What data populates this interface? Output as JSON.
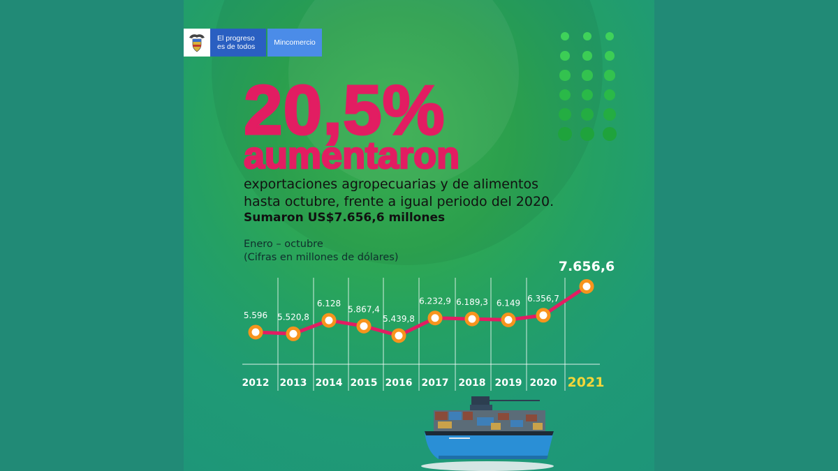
{
  "logo": {
    "progreso_line1": "El progreso",
    "progreso_line2": "es de todos",
    "ministry": "Mincomercio"
  },
  "headline": {
    "percent": "20,5%",
    "verb": "aumentaron",
    "line1": "exportaciones agropecuarias y de alimentos",
    "line2": "hasta octubre, frente a igual periodo del 2020.",
    "total": "Sumaron US$7.656,6 millones"
  },
  "chart_note": {
    "period": "Enero – octubre",
    "units": "(Cifras en millones de dólares)"
  },
  "colors": {
    "accent": "#e21d62",
    "marker": "#f7941d",
    "highlight_year": "#f4d63a"
  },
  "chart_data": {
    "type": "line",
    "categories": [
      "2012",
      "2013",
      "2014",
      "2015",
      "2016",
      "2017",
      "2018",
      "2019",
      "2020",
      "2021"
    ],
    "values": [
      5596,
      5520.8,
      6128,
      5867.4,
      5439.8,
      6232.9,
      6189.3,
      6149,
      6356.7,
      7656.6
    ],
    "data_labels": [
      "5.596",
      "5.520,8",
      "6.128",
      "5.867,4",
      "5.439,8",
      "6.232,9",
      "6.189,3",
      "6.149",
      "6.356,7",
      "7.656,6"
    ],
    "highlight_category": "2021",
    "title": "",
    "xlabel": "",
    "ylabel": "",
    "grid": "vertical"
  }
}
